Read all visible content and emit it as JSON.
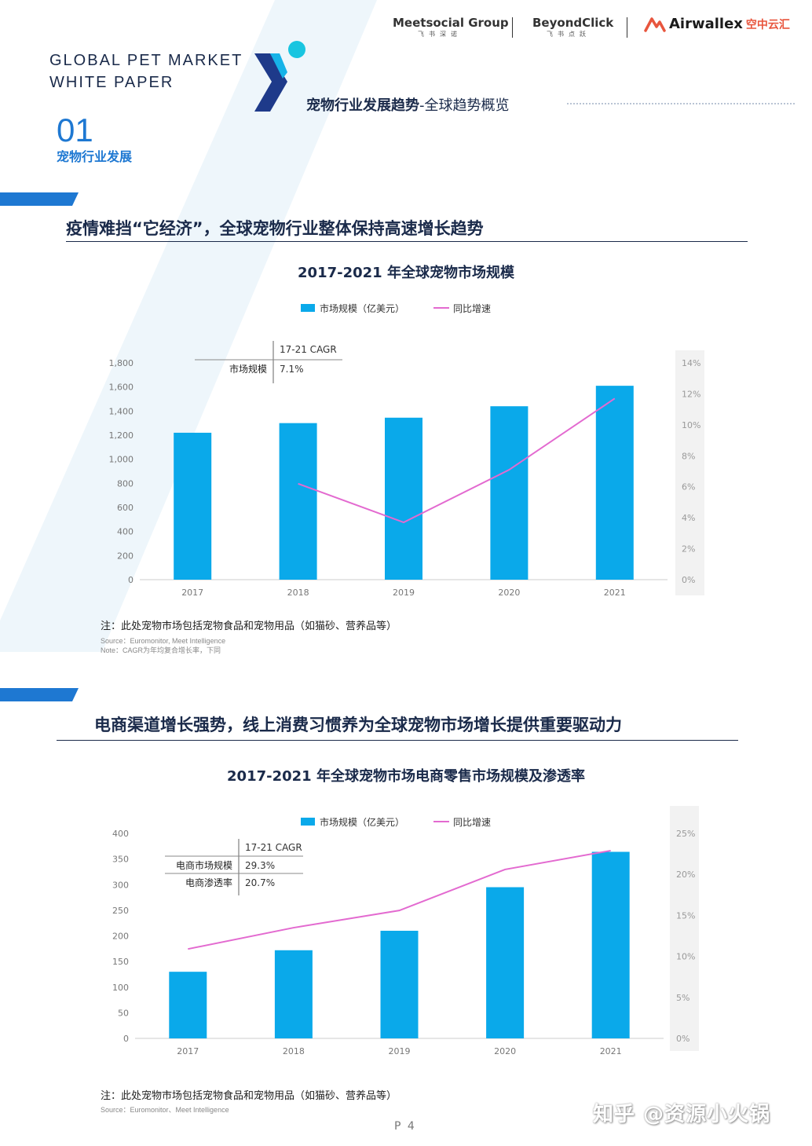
{
  "header": {
    "logos": [
      {
        "name": "Meetsocial Group",
        "sub": "飞书深诺"
      },
      {
        "name": "BeyondClick",
        "sub": "飞书点跃"
      },
      {
        "name": "Airwallex",
        "sub": "空中云汇"
      }
    ],
    "title_line1": "GLOBAL PET MARKET",
    "title_line2": "WHITE PAPER",
    "subtitle_bold": "宠物行业发展趋势",
    "subtitle_rest": "-全球趋势概览",
    "section_number": "01",
    "section_label": "宠物行业发展"
  },
  "colors": {
    "bar": "#0aa9ea",
    "line": "#e36ad0",
    "accent": "#1e78d2",
    "navy": "#1a2a4a",
    "right_axis_bg": "#f2f2f2"
  },
  "section1": {
    "heading": "疫情难挡“它经济”，全球宠物行业整体保持高速增长趋势",
    "note": "注：此处宠物市场包括宠物食品和宠物用品（如猫砂、营养品等）",
    "source": "Source：Euromonitor, Meet Intelligence",
    "note2": "Note：CAGR为年均复合增长率，下同"
  },
  "section2": {
    "heading": "电商渠道增长强势，线上消费习惯养为全球宠物市场增长提供重要驱动力",
    "note": "注：此处宠物市场包括宠物食品和宠物用品（如猫砂、营养品等）",
    "source": "Source：Euromonitor、Meet Intelligence"
  },
  "page_number": "P 4",
  "watermark": "知乎 @资源小火锅",
  "chart_data": [
    {
      "type": "bar",
      "title": "2017-2021 年全球宠物市场规模",
      "categories": [
        "2017",
        "2018",
        "2019",
        "2020",
        "2021"
      ],
      "series": [
        {
          "name": "市场规模（亿美元）",
          "type": "bar",
          "axis": "left",
          "values": [
            1220,
            1300,
            1345,
            1440,
            1610
          ]
        },
        {
          "name": "同比增速",
          "type": "line",
          "axis": "right",
          "values": [
            null,
            6.2,
            3.7,
            7.1,
            11.7
          ]
        }
      ],
      "y_left": {
        "min": 0,
        "max": 1800,
        "ticks": [
          "0",
          "200",
          "400",
          "600",
          "800",
          "1,000",
          "1,200",
          "1,400",
          "1,600",
          "1,800"
        ]
      },
      "y_right": {
        "min": 0,
        "max": 14,
        "ticks": [
          "0%",
          "2%",
          "4%",
          "6%",
          "8%",
          "10%",
          "12%",
          "14%"
        ]
      },
      "legend_position": "top-center",
      "grid": false,
      "cagr_table": {
        "header": "17-21 CAGR",
        "rows": [
          {
            "label": "市场规模",
            "value": "7.1%"
          }
        ]
      }
    },
    {
      "type": "bar",
      "title": "2017-2021 年全球宠物市场电商零售市场规模及渗透率",
      "categories": [
        "2017",
        "2018",
        "2019",
        "2020",
        "2021"
      ],
      "series": [
        {
          "name": "市场规模（亿美元）",
          "type": "bar",
          "axis": "left",
          "values": [
            130,
            172,
            210,
            295,
            364
          ]
        },
        {
          "name": "同比增速",
          "type": "line",
          "axis": "right",
          "values": [
            10.9,
            13.5,
            15.6,
            20.6,
            22.9
          ]
        }
      ],
      "y_left": {
        "min": 0,
        "max": 400,
        "ticks": [
          "0",
          "50",
          "100",
          "150",
          "200",
          "250",
          "300",
          "350",
          "400"
        ]
      },
      "y_right": {
        "min": 0,
        "max": 25,
        "ticks": [
          "0%",
          "5%",
          "10%",
          "15%",
          "20%",
          "25%"
        ]
      },
      "legend_position": "top-center",
      "grid": false,
      "cagr_table": {
        "header": "17-21 CAGR",
        "rows": [
          {
            "label": "电商市场规模",
            "value": "29.3%"
          },
          {
            "label": "电商渗透率",
            "value": "20.7%"
          }
        ]
      }
    }
  ]
}
